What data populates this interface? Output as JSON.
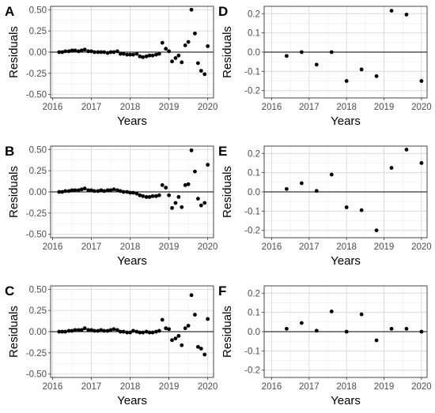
{
  "chart_data": [
    {
      "panel": "A",
      "type": "scatter",
      "xlabel": "Years",
      "ylabel": "Residuals",
      "xlim": [
        2015.95,
        2020.15
      ],
      "ylim": [
        -0.54,
        0.54
      ],
      "xticks": [
        2016,
        2017,
        2018,
        2019,
        2020
      ],
      "xtick_labels": [
        "2016",
        "2017",
        "2018",
        "2019",
        "2020"
      ],
      "yticks": [
        -0.5,
        -0.25,
        0,
        0.25,
        0.5
      ],
      "ytick_labels": [
        "-0.50",
        "-0.25",
        "0.00",
        "0.25",
        "0.50"
      ],
      "hline": 0,
      "x": [
        2016.17,
        2016.25,
        2016.33,
        2016.42,
        2016.5,
        2016.58,
        2016.67,
        2016.75,
        2016.83,
        2016.92,
        2017.0,
        2017.08,
        2017.17,
        2017.25,
        2017.33,
        2017.42,
        2017.5,
        2017.58,
        2017.67,
        2017.75,
        2017.83,
        2017.92,
        2018.0,
        2018.08,
        2018.17,
        2018.25,
        2018.33,
        2018.42,
        2018.5,
        2018.58,
        2018.67,
        2018.75,
        2018.83,
        2018.92,
        2019.0,
        2019.08,
        2019.17,
        2019.25,
        2019.33,
        2019.42,
        2019.5,
        2019.58,
        2019.67,
        2019.75,
        2019.83,
        2019.92,
        2020.0
      ],
      "y": [
        0,
        0,
        0.01,
        0.01,
        0.02,
        0.02,
        0.01,
        0.02,
        0.03,
        0.01,
        0.01,
        0,
        0,
        0,
        0,
        -0.01,
        0,
        0,
        0.01,
        -0.02,
        -0.02,
        -0.03,
        -0.03,
        -0.03,
        -0.02,
        -0.05,
        -0.06,
        -0.05,
        -0.04,
        -0.04,
        -0.03,
        -0.02,
        0.11,
        0.04,
        0.01,
        -0.11,
        -0.07,
        -0.04,
        -0.12,
        0.08,
        0.12,
        0.5,
        0.22,
        -0.13,
        -0.22,
        -0.26,
        0.07
      ]
    },
    {
      "panel": "B",
      "type": "scatter",
      "xlabel": "Years",
      "ylabel": "Residuals",
      "xlim": [
        2015.95,
        2020.15
      ],
      "ylim": [
        -0.54,
        0.54
      ],
      "xticks": [
        2016,
        2017,
        2018,
        2019,
        2020
      ],
      "xtick_labels": [
        "2016",
        "2017",
        "2018",
        "2019",
        "2020"
      ],
      "yticks": [
        -0.5,
        -0.25,
        0,
        0.25,
        0.5
      ],
      "ytick_labels": [
        "-0.50",
        "-0.25",
        "0.00",
        "0.25",
        "0.50"
      ],
      "hline": 0,
      "x": [
        2016.17,
        2016.25,
        2016.33,
        2016.42,
        2016.5,
        2016.58,
        2016.67,
        2016.75,
        2016.83,
        2016.92,
        2017.0,
        2017.08,
        2017.17,
        2017.25,
        2017.33,
        2017.42,
        2017.5,
        2017.58,
        2017.67,
        2017.75,
        2017.83,
        2017.92,
        2018.0,
        2018.08,
        2018.17,
        2018.25,
        2018.33,
        2018.42,
        2018.5,
        2018.58,
        2018.67,
        2018.75,
        2018.83,
        2018.92,
        2019.0,
        2019.08,
        2019.17,
        2019.25,
        2019.33,
        2019.42,
        2019.5,
        2019.58,
        2019.67,
        2019.75,
        2019.83,
        2019.92,
        2020.0
      ],
      "y": [
        0,
        0,
        0.01,
        0.01,
        0.02,
        0.02,
        0.02,
        0.03,
        0.04,
        0.02,
        0.02,
        0.01,
        0.01,
        0.02,
        0.01,
        0.02,
        0.02,
        0.03,
        0.02,
        0.01,
        0,
        0,
        -0.01,
        -0.01,
        -0.02,
        -0.04,
        -0.05,
        -0.06,
        -0.06,
        -0.05,
        -0.05,
        -0.04,
        0.08,
        0.05,
        -0.04,
        -0.19,
        -0.13,
        -0.06,
        -0.18,
        0.08,
        0.09,
        0.49,
        0.24,
        -0.08,
        -0.16,
        -0.13,
        0.32
      ]
    },
    {
      "panel": "C",
      "type": "scatter",
      "xlabel": "Years",
      "ylabel": "Residuals",
      "xlim": [
        2015.95,
        2020.15
      ],
      "ylim": [
        -0.54,
        0.54
      ],
      "xticks": [
        2016,
        2017,
        2018,
        2019,
        2020
      ],
      "xtick_labels": [
        "2016",
        "2017",
        "2018",
        "2019",
        "2020"
      ],
      "yticks": [
        -0.5,
        -0.25,
        0,
        0.25,
        0.5
      ],
      "ytick_labels": [
        "-0.50",
        "-0.25",
        "0.00",
        "0.25",
        "0.50"
      ],
      "hline": 0,
      "x": [
        2016.17,
        2016.25,
        2016.33,
        2016.42,
        2016.5,
        2016.58,
        2016.67,
        2016.75,
        2016.83,
        2016.92,
        2017.0,
        2017.08,
        2017.17,
        2017.25,
        2017.33,
        2017.42,
        2017.5,
        2017.58,
        2017.67,
        2017.75,
        2017.83,
        2017.92,
        2018.0,
        2018.08,
        2018.17,
        2018.25,
        2018.33,
        2018.42,
        2018.5,
        2018.58,
        2018.67,
        2018.75,
        2018.83,
        2018.92,
        2019.0,
        2019.08,
        2019.17,
        2019.25,
        2019.33,
        2019.42,
        2019.5,
        2019.58,
        2019.67,
        2019.75,
        2019.83,
        2019.92,
        2020.0
      ],
      "y": [
        0,
        0,
        0,
        0.01,
        0.01,
        0.02,
        0.02,
        0.02,
        0.04,
        0.02,
        0.02,
        0.01,
        0.01,
        0.02,
        0.01,
        0.01,
        0.02,
        0.03,
        0.02,
        0,
        0,
        -0.01,
        -0.01,
        0.01,
        0,
        -0.01,
        -0.01,
        0,
        -0.01,
        -0.01,
        0,
        0.01,
        0.14,
        0.04,
        0.03,
        -0.1,
        -0.08,
        -0.05,
        -0.16,
        0.04,
        0.07,
        0.43,
        0.2,
        -0.18,
        -0.2,
        -0.27,
        0.15
      ]
    },
    {
      "panel": "D",
      "type": "scatter",
      "xlabel": "Years",
      "ylabel": "Residuals",
      "xlim": [
        2015.8,
        2020.15
      ],
      "ylim": [
        -0.238,
        0.238
      ],
      "xticks": [
        2016,
        2017,
        2018,
        2019,
        2020
      ],
      "xtick_labels": [
        "2016",
        "2017",
        "2018",
        "2019",
        "2020"
      ],
      "yticks": [
        -0.2,
        -0.1,
        0,
        0.1,
        0.2
      ],
      "ytick_labels": [
        "-0.2",
        "-0.1",
        "0.0",
        "0.1",
        "0.2"
      ],
      "hline": 0,
      "x": [
        2016.4,
        2016.8,
        2017.2,
        2017.6,
        2018.0,
        2018.4,
        2018.8,
        2019.2,
        2019.6,
        2020.0
      ],
      "y": [
        -0.02,
        0.0,
        -0.065,
        0.0,
        -0.15,
        -0.09,
        -0.125,
        0.215,
        0.195,
        -0.15
      ]
    },
    {
      "panel": "E",
      "type": "scatter",
      "xlabel": "Years",
      "ylabel": "Residuals",
      "xlim": [
        2015.8,
        2020.15
      ],
      "ylim": [
        -0.238,
        0.238
      ],
      "xticks": [
        2016,
        2017,
        2018,
        2019,
        2020
      ],
      "xtick_labels": [
        "2016",
        "2017",
        "2018",
        "2019",
        "2020"
      ],
      "yticks": [
        -0.2,
        -0.1,
        0,
        0.1,
        0.2
      ],
      "ytick_labels": [
        "-0.2",
        "-0.1",
        "0.0",
        "0.1",
        "0.2"
      ],
      "hline": 0,
      "x": [
        2016.4,
        2016.8,
        2017.2,
        2017.6,
        2018.0,
        2018.4,
        2018.8,
        2019.2,
        2019.6,
        2020.0
      ],
      "y": [
        0.015,
        0.045,
        0.005,
        0.09,
        -0.08,
        -0.095,
        -0.2,
        0.125,
        0.22,
        0.15
      ]
    },
    {
      "panel": "F",
      "type": "scatter",
      "xlabel": "Years",
      "ylabel": "Residuals",
      "xlim": [
        2015.8,
        2020.15
      ],
      "ylim": [
        -0.238,
        0.238
      ],
      "xticks": [
        2016,
        2017,
        2018,
        2019,
        2020
      ],
      "xtick_labels": [
        "2016",
        "2017",
        "2018",
        "2019",
        "2020"
      ],
      "yticks": [
        -0.2,
        -0.1,
        0,
        0.1,
        0.2
      ],
      "ytick_labels": [
        "-0.2",
        "-0.1",
        "0.0",
        "0.1",
        "0.2"
      ],
      "hline": 0,
      "x": [
        2016.4,
        2016.8,
        2017.2,
        2017.6,
        2018.0,
        2018.4,
        2018.8,
        2019.2,
        2019.6,
        2020.0
      ],
      "y": [
        0.015,
        0.045,
        0.005,
        0.105,
        0.0,
        0.09,
        -0.045,
        0.015,
        0.015,
        0.0
      ]
    }
  ]
}
